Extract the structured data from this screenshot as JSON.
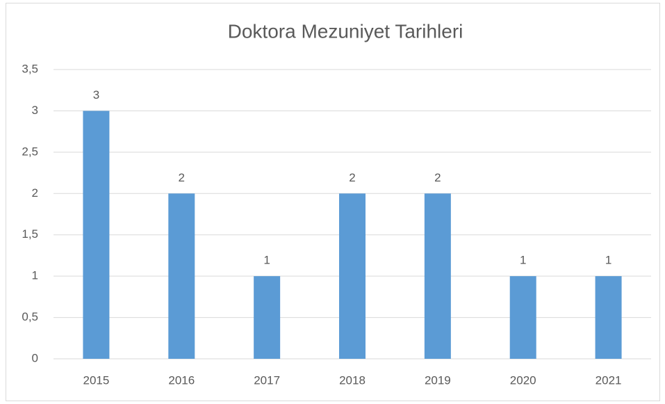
{
  "chart_data": {
    "type": "bar",
    "title": "Doktora Mezuniyet Tarihleri",
    "categories": [
      "2015",
      "2016",
      "2017",
      "2018",
      "2019",
      "2020",
      "2021"
    ],
    "values": [
      3,
      2,
      1,
      2,
      2,
      1,
      1
    ],
    "color": "#5b9bd5",
    "ylim": [
      0,
      3.5
    ],
    "yticks": [
      0,
      {
        "value": 0.5,
        "label": "0,5"
      },
      1,
      {
        "value": 1.5,
        "label": "1,5"
      },
      2,
      {
        "value": 2.5,
        "label": "2,5"
      },
      3,
      {
        "value": 3.5,
        "label": "3,5"
      }
    ],
    "grid": true
  }
}
